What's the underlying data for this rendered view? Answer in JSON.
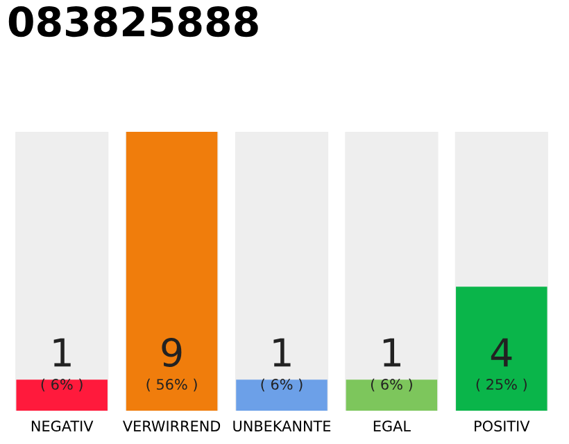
{
  "chart_data": {
    "type": "bar",
    "title": "083825888",
    "categories": [
      "NEGATIV",
      "VERWIRREND",
      "UNBEKANNTE",
      "EGAL",
      "POSITIV"
    ],
    "values": [
      1,
      9,
      1,
      1,
      4
    ],
    "colors": [
      "#ff1a3c",
      "#f07d0c",
      "#6ca0e8",
      "#7dc65c",
      "#0ab54a"
    ],
    "data_labels": true,
    "annotations": [
      "( 6% )",
      "( 56% )",
      "( 6% )",
      "( 6% )",
      "( 25% )"
    ],
    "grid": false,
    "legend": false
  }
}
